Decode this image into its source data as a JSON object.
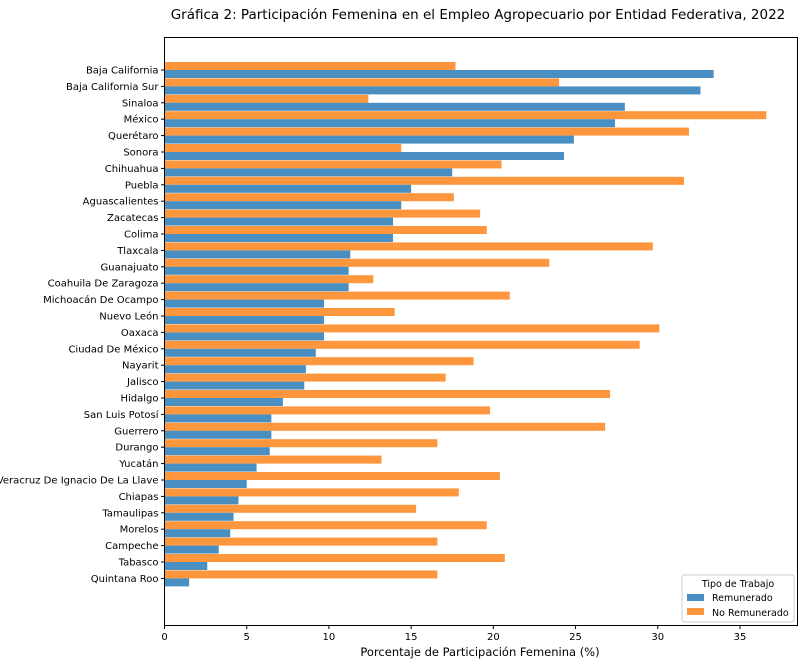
{
  "chart_data": {
    "type": "bar",
    "orientation": "horizontal",
    "title": "Gráfica 2: Participación Femenina en el Empleo Agropecuario por Entidad Federativa, 2022",
    "xlabel": "Porcentaje de Participación Femenina (%)",
    "ylabel": "",
    "xlim": [
      0,
      38.5
    ],
    "xticks": [
      0,
      5,
      10,
      15,
      20,
      25,
      30,
      35
    ],
    "grid": false,
    "legend": {
      "title": "Tipo de Trabajo",
      "placement": "lower-right"
    },
    "categories": [
      "Baja California",
      "Baja California Sur",
      "Sinaloa",
      "México",
      "Querétaro",
      "Sonora",
      "Chihuahua",
      "Puebla",
      "Aguascalientes",
      "Zacatecas",
      "Colima",
      "Tlaxcala",
      "Guanajuato",
      "Coahuila De Zaragoza",
      "Michoacán De Ocampo",
      "Nuevo León",
      "Oaxaca",
      "Ciudad De México",
      "Nayarit",
      "Jalisco",
      "Hidalgo",
      "San Luis Potosí",
      "Guerrero",
      "Durango",
      "Yucatán",
      "Veracruz De Ignacio De La Llave",
      "Chiapas",
      "Tamaulipas",
      "Morelos",
      "Campeche",
      "Tabasco",
      "Quintana Roo"
    ],
    "series": [
      {
        "name": "Remunerado",
        "color": "#4a8fc1",
        "values": [
          33.4,
          32.6,
          28.0,
          27.4,
          24.9,
          24.3,
          17.5,
          15.0,
          14.4,
          13.9,
          13.9,
          11.3,
          11.2,
          11.2,
          9.7,
          9.7,
          9.7,
          9.2,
          8.6,
          8.5,
          7.2,
          6.5,
          6.5,
          6.4,
          5.6,
          5.0,
          4.5,
          4.2,
          4.0,
          3.3,
          2.6,
          1.5
        ]
      },
      {
        "name": "No Remunerado",
        "color": "#fd963d",
        "values": [
          17.7,
          24.0,
          12.4,
          36.6,
          31.9,
          14.4,
          20.5,
          31.6,
          17.6,
          19.2,
          19.6,
          29.7,
          23.4,
          12.7,
          21.0,
          14.0,
          30.1,
          28.9,
          18.8,
          17.1,
          27.1,
          19.8,
          26.8,
          16.6,
          13.2,
          20.4,
          17.9,
          15.3,
          19.6,
          16.6,
          20.7,
          16.6
        ]
      }
    ]
  }
}
